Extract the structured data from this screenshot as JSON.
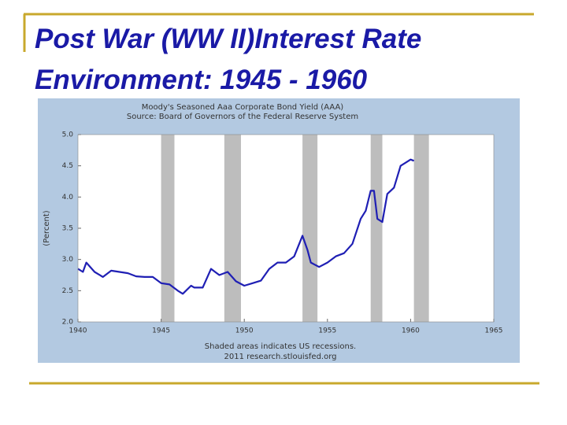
{
  "slide": {
    "title_lines": [
      "Post War (WW II)Interest Rate",
      "Environment: 1945 - 1960"
    ]
  },
  "chart_data": {
    "type": "line",
    "title": "Moody's Seasoned Aaa Corporate Bond Yield (AAA)",
    "subtitle": "Source: Board of Governors of the Federal Reserve System",
    "y_label": "(Percent)",
    "notes": [
      "Shaded areas indicates US recessions.",
      "2011 research.stlouisfed.org"
    ],
    "color": "#1f1fb4",
    "x": [
      1940.0,
      1940.3,
      1940.5,
      1941.0,
      1941.5,
      1942.0,
      1942.5,
      1943.0,
      1943.5,
      1944.0,
      1944.5,
      1945.0,
      1945.5,
      1946.0,
      1946.3,
      1946.8,
      1947.0,
      1947.5,
      1948.0,
      1948.5,
      1949.0,
      1949.5,
      1950.0,
      1950.5,
      1951.0,
      1951.5,
      1952.0,
      1952.5,
      1953.0,
      1953.5,
      1953.8,
      1954.0,
      1954.5,
      1955.0,
      1955.5,
      1956.0,
      1956.5,
      1957.0,
      1957.3,
      1957.6,
      1957.8,
      1958.0,
      1958.3,
      1958.6,
      1959.0,
      1959.4,
      1959.7,
      1960.0,
      1960.2
    ],
    "values": [
      2.85,
      2.8,
      2.95,
      2.8,
      2.72,
      2.82,
      2.8,
      2.78,
      2.73,
      2.72,
      2.72,
      2.62,
      2.6,
      2.5,
      2.45,
      2.58,
      2.55,
      2.55,
      2.85,
      2.75,
      2.8,
      2.65,
      2.58,
      2.62,
      2.66,
      2.85,
      2.95,
      2.95,
      3.05,
      3.38,
      3.15,
      2.95,
      2.88,
      2.95,
      3.05,
      3.1,
      3.25,
      3.65,
      3.78,
      4.1,
      4.1,
      3.65,
      3.6,
      4.05,
      4.15,
      4.5,
      4.55,
      4.6,
      4.58
    ],
    "recessions": [
      [
        1945.0,
        1945.8
      ],
      [
        1948.8,
        1949.8
      ],
      [
        1953.5,
        1954.4
      ],
      [
        1957.6,
        1958.3
      ],
      [
        1960.2,
        1961.1
      ]
    ],
    "recession_color": "#bdbdbd",
    "xlim": [
      1940,
      1965
    ],
    "xticks": [
      1940,
      1945,
      1950,
      1955,
      1960,
      1965
    ],
    "ylim": [
      2,
      5
    ],
    "yticks": [
      {
        "value": 2,
        "label": "2.0"
      },
      {
        "value": 2.5,
        "label": "2.5"
      },
      {
        "value": 3,
        "label": "3.0"
      },
      {
        "value": 3.5,
        "label": "3.5"
      },
      {
        "value": 4,
        "label": "4.0"
      },
      {
        "value": 4.5,
        "label": "4.5"
      },
      {
        "value": 5,
        "label": "5.0"
      }
    ]
  }
}
